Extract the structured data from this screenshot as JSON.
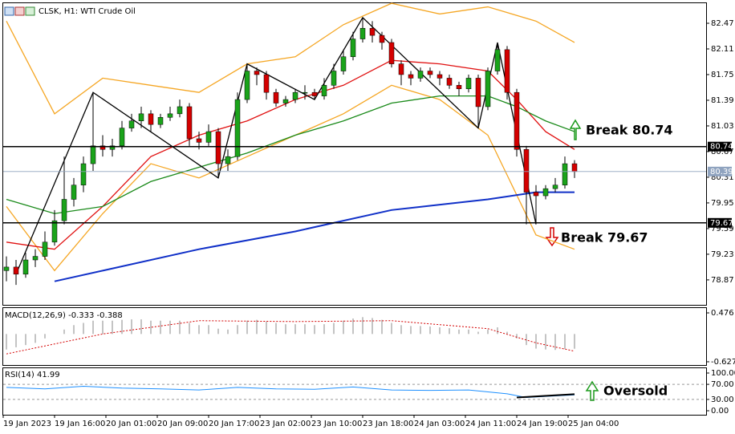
{
  "header": {
    "symbol": "CLSK, H1:  WTI Crude Oil"
  },
  "time_axis": [
    "19 Jan 2023",
    "19 Jan 16:00",
    "20 Jan 01:00",
    "20 Jan 09:00",
    "20 Jan 17:00",
    "23 Jan 02:00",
    "23 Jan 10:00",
    "23 Jan 18:00",
    "24 Jan 03:00",
    "24 Jan 11:00",
    "24 Jan 19:00",
    "25 Jan 04:00"
  ],
  "chart_data": [
    {
      "type": "candlestick",
      "ylim": [
        78.52,
        82.74
      ],
      "yticks": [
        82.47,
        82.11,
        81.75,
        81.39,
        81.03,
        80.67,
        80.31,
        79.95,
        79.59,
        79.23,
        78.87
      ],
      "up_color": "#1aa31a",
      "down_color": "#d40000",
      "candles": [
        [
          79.0,
          79.2,
          78.85,
          79.05
        ],
        [
          79.05,
          79.15,
          78.8,
          78.95
        ],
        [
          78.95,
          79.25,
          78.9,
          79.15
        ],
        [
          79.15,
          79.3,
          79.05,
          79.2
        ],
        [
          79.2,
          79.55,
          79.15,
          79.4
        ],
        [
          79.4,
          79.85,
          79.35,
          79.7
        ],
        [
          79.7,
          80.6,
          79.65,
          80.0
        ],
        [
          80.0,
          80.3,
          79.9,
          80.2
        ],
        [
          80.2,
          80.6,
          80.1,
          80.5
        ],
        [
          80.5,
          81.5,
          80.4,
          80.75
        ],
        [
          80.75,
          80.9,
          80.6,
          80.7
        ],
        [
          80.7,
          80.85,
          80.6,
          80.75
        ],
        [
          80.75,
          81.1,
          80.7,
          81.0
        ],
        [
          81.0,
          81.2,
          80.95,
          81.1
        ],
        [
          81.1,
          81.3,
          81.0,
          81.2
        ],
        [
          81.2,
          81.25,
          80.95,
          81.05
        ],
        [
          81.05,
          81.2,
          81.0,
          81.15
        ],
        [
          81.15,
          81.3,
          81.1,
          81.2
        ],
        [
          81.2,
          81.4,
          81.15,
          81.3
        ],
        [
          81.3,
          81.35,
          80.75,
          80.85
        ],
        [
          80.85,
          80.95,
          80.7,
          80.8
        ],
        [
          80.8,
          81.05,
          80.75,
          80.95
        ],
        [
          80.95,
          81.0,
          80.3,
          80.5
        ],
        [
          80.5,
          80.7,
          80.4,
          80.6
        ],
        [
          80.6,
          81.5,
          80.55,
          81.4
        ],
        [
          81.4,
          81.9,
          81.35,
          81.8
        ],
        [
          81.8,
          81.85,
          81.6,
          81.75
        ],
        [
          81.75,
          81.8,
          81.4,
          81.5
        ],
        [
          81.5,
          81.55,
          81.3,
          81.35
        ],
        [
          81.35,
          81.45,
          81.3,
          81.4
        ],
        [
          81.4,
          81.55,
          81.35,
          81.5
        ],
        [
          81.5,
          81.6,
          81.4,
          81.5
        ],
        [
          81.5,
          81.55,
          81.4,
          81.45
        ],
        [
          81.45,
          81.7,
          81.4,
          81.6
        ],
        [
          81.6,
          81.9,
          81.55,
          81.8
        ],
        [
          81.8,
          82.1,
          81.75,
          82.0
        ],
        [
          82.0,
          82.35,
          81.95,
          82.25
        ],
        [
          82.25,
          82.55,
          82.2,
          82.4
        ],
        [
          82.4,
          82.5,
          82.2,
          82.3
        ],
        [
          82.3,
          82.35,
          82.1,
          82.2
        ],
        [
          82.2,
          82.25,
          81.85,
          81.9
        ],
        [
          81.9,
          81.95,
          81.6,
          81.75
        ],
        [
          81.75,
          81.8,
          81.6,
          81.7
        ],
        [
          81.7,
          81.85,
          81.65,
          81.8
        ],
        [
          81.8,
          81.85,
          81.7,
          81.75
        ],
        [
          81.75,
          81.8,
          81.6,
          81.7
        ],
        [
          81.7,
          81.75,
          81.55,
          81.6
        ],
        [
          81.6,
          81.65,
          81.45,
          81.55
        ],
        [
          81.55,
          81.75,
          81.5,
          81.7
        ],
        [
          81.7,
          81.75,
          81.0,
          81.3
        ],
        [
          81.3,
          81.85,
          81.25,
          81.8
        ],
        [
          81.8,
          82.2,
          81.75,
          82.1
        ],
        [
          82.1,
          82.15,
          81.4,
          81.5
        ],
        [
          81.5,
          81.55,
          80.6,
          80.7
        ],
        [
          80.7,
          80.75,
          79.65,
          80.1
        ],
        [
          80.1,
          80.2,
          79.65,
          80.05
        ],
        [
          80.05,
          80.2,
          80.0,
          80.15
        ],
        [
          80.15,
          80.3,
          80.1,
          80.2
        ],
        [
          80.2,
          80.6,
          80.15,
          80.5
        ],
        [
          80.5,
          80.55,
          80.3,
          80.39
        ]
      ],
      "lines": [
        {
          "color": "#f5a623",
          "x": [
            0,
            5,
            10,
            15,
            20,
            25,
            30,
            35,
            40,
            45,
            50,
            55,
            59
          ],
          "values": [
            82.5,
            81.2,
            81.7,
            81.6,
            81.5,
            81.9,
            82.0,
            82.45,
            82.75,
            82.6,
            82.7,
            82.5,
            82.2
          ]
        },
        {
          "color": "#f5a623",
          "x": [
            0,
            5,
            10,
            15,
            20,
            25,
            30,
            35,
            40,
            45,
            50,
            55,
            59
          ],
          "values": [
            79.9,
            79.0,
            79.8,
            80.5,
            80.3,
            80.6,
            80.9,
            81.2,
            81.6,
            81.4,
            80.9,
            79.5,
            79.3
          ]
        },
        {
          "color": "#e01010",
          "x": [
            0,
            5,
            10,
            15,
            20,
            25,
            30,
            35,
            40,
            45,
            50,
            53,
            56,
            59
          ],
          "values": [
            79.4,
            79.3,
            79.9,
            80.6,
            80.9,
            81.1,
            81.4,
            81.6,
            81.95,
            81.9,
            81.8,
            81.4,
            80.95,
            80.7
          ]
        },
        {
          "color": "#1a8a1a",
          "x": [
            0,
            5,
            10,
            15,
            20,
            25,
            30,
            35,
            40,
            45,
            50,
            53,
            56,
            59
          ],
          "values": [
            80.0,
            79.8,
            79.9,
            80.25,
            80.45,
            80.65,
            80.9,
            81.1,
            81.35,
            81.45,
            81.45,
            81.3,
            81.1,
            80.95
          ]
        },
        {
          "color": "#1030c8",
          "x": [
            5,
            10,
            20,
            30,
            40,
            50,
            55,
            59
          ],
          "values": [
            78.85,
            79.0,
            79.3,
            79.55,
            79.85,
            80.0,
            80.1,
            80.1
          ]
        },
        {
          "color": "#000000",
          "x": [
            1,
            9,
            22,
            25,
            32,
            37,
            49,
            51,
            55
          ],
          "values": [
            78.95,
            81.5,
            80.3,
            81.9,
            81.4,
            82.55,
            81.0,
            82.2,
            79.65
          ]
        }
      ],
      "levels": [
        80.74,
        79.67
      ],
      "last_price": 80.39,
      "annotations": [
        "Break 80.74",
        "Break 79.67"
      ]
    },
    {
      "type": "macd",
      "label": "MACD(12,26,9) -0.333 -0.388",
      "ylim": [
        -0.7,
        0.585
      ],
      "yticks": [
        0.476,
        -0.627
      ],
      "histogram": [
        -0.35,
        -0.3,
        -0.25,
        -0.2,
        -0.1,
        0.0,
        0.1,
        0.2,
        0.25,
        0.3,
        0.3,
        0.3,
        0.32,
        0.33,
        0.33,
        0.3,
        0.3,
        0.3,
        0.3,
        0.25,
        0.2,
        0.2,
        0.12,
        0.1,
        0.2,
        0.3,
        0.32,
        0.28,
        0.25,
        0.22,
        0.22,
        0.22,
        0.2,
        0.22,
        0.25,
        0.3,
        0.35,
        0.38,
        0.36,
        0.32,
        0.25,
        0.2,
        0.18,
        0.18,
        0.17,
        0.15,
        0.13,
        0.1,
        0.1,
        0.05,
        0.1,
        0.15,
        0.05,
        -0.1,
        -0.25,
        -0.33,
        -0.35,
        -0.36,
        -0.34,
        -0.333
      ],
      "signal": {
        "color": "#d40000",
        "x": [
          0,
          10,
          20,
          30,
          40,
          50,
          55,
          59
        ],
        "values": [
          -0.45,
          0.0,
          0.3,
          0.28,
          0.3,
          0.12,
          -0.2,
          -0.388
        ]
      }
    },
    {
      "type": "rsi",
      "label": "RSI(14) 41.99",
      "ylim": [
        -10.6,
        110.6
      ],
      "yticks": [
        {
          "value": 100,
          "label": "100.00"
        },
        {
          "value": 70,
          "label": "70.00"
        },
        {
          "value": 30,
          "label": "30.00"
        },
        {
          "value": 0,
          "label": "0.00"
        }
      ],
      "line": {
        "color": "#1e90ff",
        "x": [
          0,
          4,
          8,
          12,
          16,
          20,
          24,
          28,
          32,
          36,
          40,
          44,
          48,
          52,
          54,
          56,
          59
        ],
        "values": [
          62,
          58,
          65,
          60,
          58,
          55,
          62,
          58,
          57,
          63,
          55,
          54,
          55,
          45,
          35,
          38,
          41.99
        ]
      },
      "trendline": {
        "color": "#000000",
        "x": [
          53,
          59
        ],
        "values": [
          35,
          44
        ]
      },
      "annotations": [
        "Oversold"
      ]
    }
  ]
}
